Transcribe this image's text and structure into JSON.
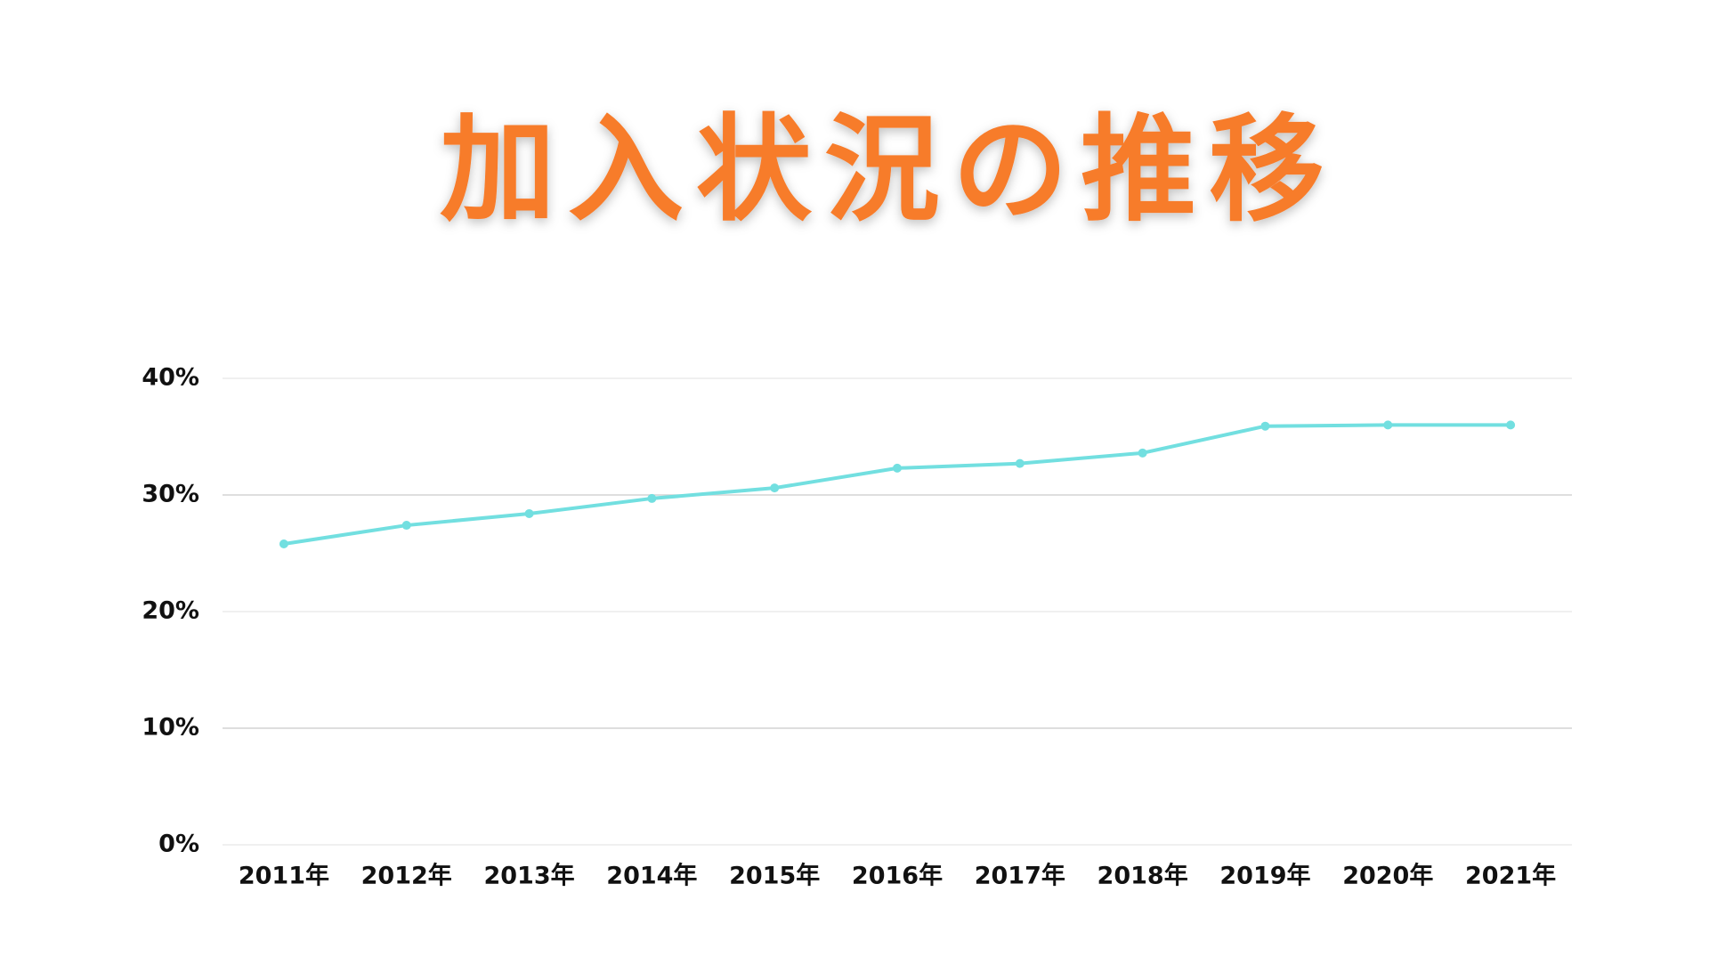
{
  "chart_data": {
    "type": "line",
    "title": "加入状況の推移",
    "categories": [
      "2011年",
      "2012年",
      "2013年",
      "2014年",
      "2015年",
      "2016年",
      "2017年",
      "2018年",
      "2019年",
      "2020年",
      "2021年"
    ],
    "values": [
      25.8,
      27.4,
      28.4,
      29.7,
      30.6,
      32.3,
      32.7,
      33.6,
      35.9,
      36.0,
      36.0
    ],
    "color": "#72dfe0",
    "ylim": [
      0,
      40
    ],
    "yticks": [
      {
        "value": 0,
        "label": "0%"
      },
      {
        "value": 10,
        "label": "10%"
      },
      {
        "value": 20,
        "label": "20%"
      },
      {
        "value": 30,
        "label": "30%"
      },
      {
        "value": 40,
        "label": "40%"
      }
    ],
    "grid": true
  }
}
